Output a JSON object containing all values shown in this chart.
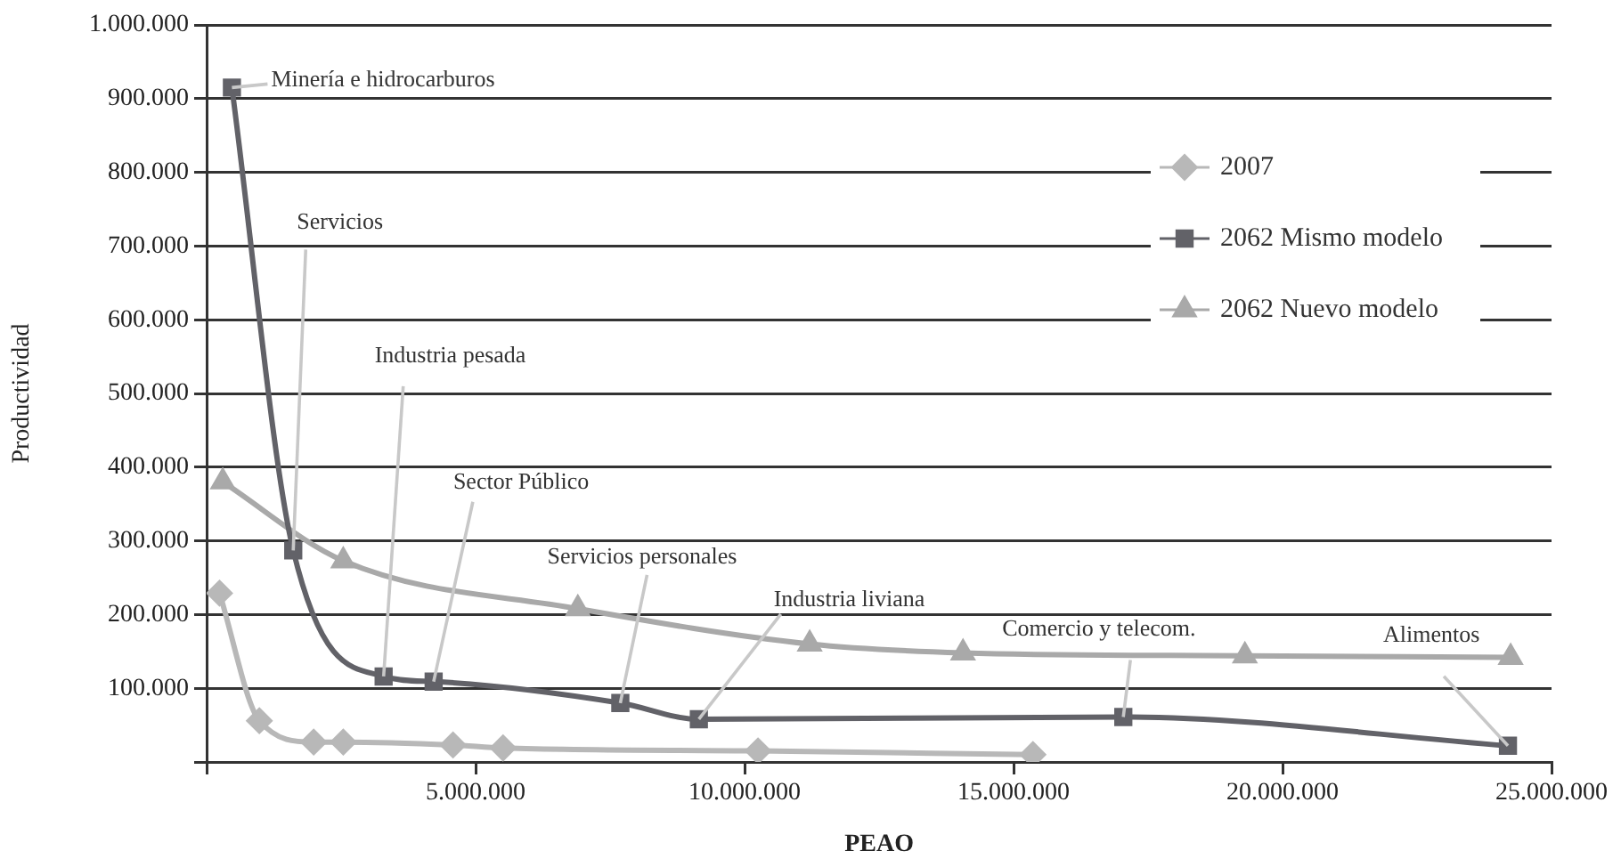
{
  "chart_data": {
    "type": "line",
    "xlabel": "PEAO",
    "ylabel": "Productividad",
    "series": [
      {
        "name": "2007",
        "color": "#b8b8b8",
        "marker": "diamond",
        "x": [
          240000,
          980000,
          1990000,
          2540000,
          4580000,
          5510000,
          10250000,
          15360000
        ],
        "values": [
          229000,
          56000,
          27000,
          27000,
          23000,
          19000,
          15000,
          10000
        ]
      },
      {
        "name": "2062 Mismo modelo",
        "color": "#626268",
        "marker": "square",
        "x": [
          470000,
          1610000,
          3290000,
          4220000,
          7690000,
          9150000,
          17040000,
          24190000
        ],
        "values": [
          915000,
          287000,
          116000,
          109000,
          80000,
          58000,
          61000,
          22000
        ]
      },
      {
        "name": "2062 Nuevo modelo",
        "color": "#a9a9a9",
        "marker": "triangle",
        "x": [
          300000,
          2540000,
          6900000,
          11210000,
          14060000,
          19300000,
          24240000
        ],
        "values": [
          380000,
          273000,
          208000,
          160000,
          148000,
          144000,
          142000
        ]
      }
    ],
    "xlim": [
      0,
      25000000
    ],
    "xticks": [
      {
        "value": 0,
        "label": null
      },
      {
        "value": 5000000,
        "label": "5.000.000"
      },
      {
        "value": 10000000,
        "label": "10.000.000"
      },
      {
        "value": 15000000,
        "label": "15.000.000"
      },
      {
        "value": 20000000,
        "label": "20.000.000"
      },
      {
        "value": 25000000,
        "label": "25.000.000"
      }
    ],
    "ylim": [
      0,
      1000000
    ],
    "yticks": [
      {
        "value": 0,
        "label": null
      },
      {
        "value": 100000,
        "label": "100.000"
      },
      {
        "value": 200000,
        "label": "200.000"
      },
      {
        "value": 300000,
        "label": "300.000"
      },
      {
        "value": 400000,
        "label": "400.000"
      },
      {
        "value": 500000,
        "label": "500.000"
      },
      {
        "value": 600000,
        "label": "600.000"
      },
      {
        "value": 700000,
        "label": "700.000"
      },
      {
        "value": 800000,
        "label": "800.000"
      },
      {
        "value": 900000,
        "label": "900.000"
      },
      {
        "value": 1000000,
        "label": "1.000.000"
      }
    ],
    "grid": "y",
    "legend": "top right",
    "annotations": [
      {
        "text": "Minería e hidrocarburos",
        "x": 470000,
        "y": 915000
      },
      {
        "text": "Servicios",
        "x": 1610000,
        "y": 287000
      },
      {
        "text": "Industria pesada",
        "x": 3290000,
        "y": 116000
      },
      {
        "text": "Sector Público",
        "x": 4220000,
        "y": 109000
      },
      {
        "text": "Servicios personales",
        "x": 7690000,
        "y": 80000
      },
      {
        "text": "Industria liviana",
        "x": 9150000,
        "y": 58000
      },
      {
        "text": "Comercio y telecom.",
        "x": 17040000,
        "y": 61000
      },
      {
        "text": "Alimentos",
        "x": 24190000,
        "y": 22000
      }
    ]
  }
}
